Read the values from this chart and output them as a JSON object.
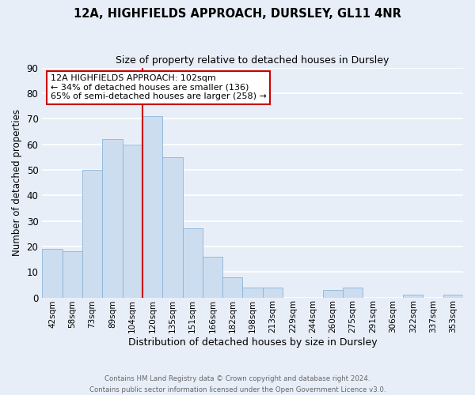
{
  "title": "12A, HIGHFIELDS APPROACH, DURSLEY, GL11 4NR",
  "subtitle": "Size of property relative to detached houses in Dursley",
  "xlabel": "Distribution of detached houses by size in Dursley",
  "ylabel": "Number of detached properties",
  "bar_labels": [
    "42sqm",
    "58sqm",
    "73sqm",
    "89sqm",
    "104sqm",
    "120sqm",
    "135sqm",
    "151sqm",
    "166sqm",
    "182sqm",
    "198sqm",
    "213sqm",
    "229sqm",
    "244sqm",
    "260sqm",
    "275sqm",
    "291sqm",
    "306sqm",
    "322sqm",
    "337sqm",
    "353sqm"
  ],
  "bar_heights": [
    19,
    18,
    50,
    62,
    60,
    71,
    55,
    27,
    16,
    8,
    4,
    4,
    0,
    0,
    3,
    4,
    0,
    0,
    1,
    0,
    1
  ],
  "bar_color": "#ccddf0",
  "bar_edge_color": "#8ab4d8",
  "vline_color": "#cc0000",
  "ylim": [
    0,
    90
  ],
  "yticks": [
    0,
    10,
    20,
    30,
    40,
    50,
    60,
    70,
    80,
    90
  ],
  "annotation_text": "12A HIGHFIELDS APPROACH: 102sqm\n← 34% of detached houses are smaller (136)\n65% of semi-detached houses are larger (258) →",
  "annotation_box_color": "#ffffff",
  "annotation_border_color": "#cc0000",
  "footer_line1": "Contains HM Land Registry data © Crown copyright and database right 2024.",
  "footer_line2": "Contains public sector information licensed under the Open Government Licence v3.0.",
  "background_color": "#e8eef8",
  "grid_color": "#ffffff",
  "vline_index": 4
}
